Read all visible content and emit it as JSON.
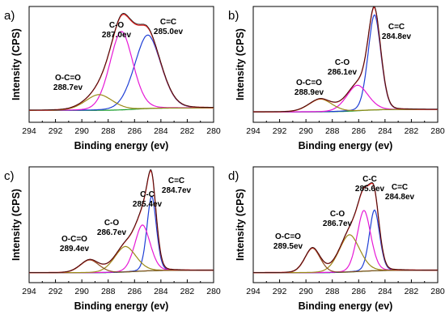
{
  "chart_data": [
    {
      "type": "line",
      "panel_label": "a)",
      "xlabel": "Binding energy (ev)",
      "ylabel": "Intensity (CPS)",
      "xlim": [
        294,
        280
      ],
      "x_ticks": [
        "294",
        "292",
        "290",
        "288",
        "286",
        "284",
        "282",
        "280"
      ],
      "baseline": 0.055,
      "max_intensity": 1.0,
      "peaks": [
        {
          "name": "C=C",
          "center": 285.0,
          "label": "285.0ev",
          "height": 0.75,
          "width": 1.55,
          "color": "#1f3fd6"
        },
        {
          "name": "C-O",
          "center": 287.0,
          "label": "287.0ev",
          "height": 0.8,
          "width": 1.35,
          "color": "#e619d6"
        },
        {
          "name": "O-C=O",
          "center": 288.7,
          "label": "288.7ev",
          "height": 0.16,
          "width": 1.6,
          "color": "#9a8a18"
        }
      ],
      "series": [
        {
          "name": "Envelope",
          "color": "#d6201e"
        },
        {
          "name": "Background",
          "color": "#169c28"
        }
      ]
    },
    {
      "type": "line",
      "panel_label": "b)",
      "xlabel": "Binding energy (ev)",
      "ylabel": "Intensity (CPS)",
      "xlim": [
        294,
        280
      ],
      "x_ticks": [
        "294",
        "292",
        "290",
        "288",
        "286",
        "284",
        "282",
        "280"
      ],
      "baseline": 0.04,
      "max_intensity": 1.0,
      "peaks": [
        {
          "name": "C=C",
          "center": 284.8,
          "label": "284.8ev",
          "height": 0.97,
          "width": 0.75,
          "color": "#1f3fd6"
        },
        {
          "name": "C-O",
          "center": 286.1,
          "label": "286.1ev",
          "height": 0.26,
          "width": 1.25,
          "color": "#e619d6"
        },
        {
          "name": "O-C=O",
          "center": 288.9,
          "label": "288.9ev",
          "height": 0.13,
          "width": 1.35,
          "color": "#9a8a18"
        }
      ],
      "series": [
        {
          "name": "Envelope",
          "color": "#d6201e"
        },
        {
          "name": "Background",
          "color": "#169c28"
        }
      ]
    },
    {
      "type": "line",
      "panel_label": "c)",
      "xlabel": "Binding energy (ev)",
      "ylabel": "Intensity (CPS)",
      "xlim": [
        294,
        280
      ],
      "x_ticks": [
        "294",
        "292",
        "290",
        "288",
        "286",
        "284",
        "282",
        "280"
      ],
      "baseline": 0.035,
      "max_intensity": 1.0,
      "peaks": [
        {
          "name": "C=C",
          "center": 284.7,
          "label": "284.7ev",
          "height": 0.76,
          "width": 0.55,
          "color": "#1f3fd6"
        },
        {
          "name": "C-C",
          "center": 285.4,
          "label": "285.4ev",
          "height": 0.47,
          "width": 0.9,
          "color": "#e619d6"
        },
        {
          "name": "C-O",
          "center": 286.7,
          "label": "286.7ev",
          "height": 0.26,
          "width": 1.25,
          "color": "#9a8a18"
        },
        {
          "name": "O-C=O",
          "center": 289.4,
          "label": "289.4ev",
          "height": 0.13,
          "width": 1.1,
          "color": "#8a5020"
        }
      ],
      "series": [
        {
          "name": "Envelope",
          "color": "#d6201e"
        },
        {
          "name": "Background",
          "color": "#169c28"
        }
      ]
    },
    {
      "type": "line",
      "panel_label": "d)",
      "xlabel": "Binding energy (ev)",
      "ylabel": "Intensity (CPS)",
      "xlim": [
        294,
        280
      ],
      "x_ticks": [
        "294",
        "292",
        "290",
        "288",
        "286",
        "284",
        "282",
        "280"
      ],
      "baseline": 0.035,
      "max_intensity": 1.0,
      "peaks": [
        {
          "name": "C=C",
          "center": 284.8,
          "label": "284.8ev",
          "height": 0.62,
          "width": 0.6,
          "color": "#1f3fd6"
        },
        {
          "name": "C-C",
          "center": 285.6,
          "label": "285.6ev",
          "height": 0.62,
          "width": 0.8,
          "color": "#e619d6"
        },
        {
          "name": "C-O",
          "center": 286.7,
          "label": "286.7ev",
          "height": 0.38,
          "width": 1.2,
          "color": "#9a8a18"
        },
        {
          "name": "O-C=O",
          "center": 289.5,
          "label": "289.5ev",
          "height": 0.25,
          "width": 0.9,
          "color": "#8a5020"
        }
      ],
      "series": [
        {
          "name": "Envelope",
          "color": "#d6201e"
        },
        {
          "name": "Background",
          "color": "#169c28"
        }
      ]
    }
  ]
}
